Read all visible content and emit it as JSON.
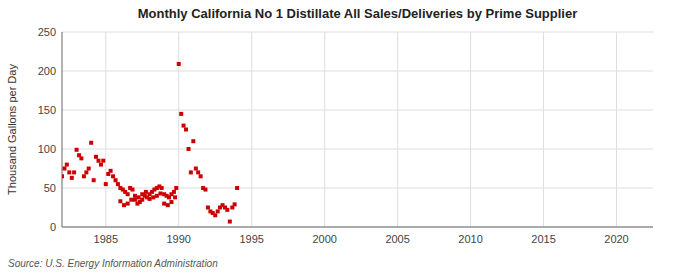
{
  "chart_data": {
    "type": "scatter",
    "title": "Monthly California No 1 Distillate All Sales/Deliveries by Prime Supplier",
    "y_label": "Thousand Gallons per Day",
    "source": "Source: U.S. Energy Information Administration",
    "color": "#cc0000",
    "marker": "square",
    "grid": true,
    "xlim": [
      1982.0,
      2022.5
    ],
    "ylim": [
      0,
      250
    ],
    "xticks": [
      1985,
      1990,
      1995,
      2000,
      2005,
      2010,
      2015,
      2020
    ],
    "yticks": [
      0,
      50,
      100,
      150,
      200,
      250
    ],
    "x": [
      1983.0,
      1983.17,
      1983.33,
      1983.5,
      1983.67,
      1983.83,
      1984.0,
      1984.17,
      1984.33,
      1984.5,
      1984.67,
      1984.83,
      1985.0,
      1985.17,
      1985.33,
      1985.5,
      1985.67,
      1985.83,
      1986.0,
      1986.17,
      1986.33,
      1986.5,
      1986.67,
      1986.83,
      1987.0,
      1987.17,
      1987.33,
      1987.5,
      1987.67,
      1987.83,
      1988.0,
      1988.17,
      1988.33,
      1988.5,
      1988.67,
      1988.83,
      1989.0,
      1989.17,
      1989.33,
      1989.5,
      1989.67,
      1989.83,
      1982.0,
      1982.17,
      1982.33,
      1982.5,
      1982.67,
      1982.83,
      1986.0,
      1986.25,
      1986.5,
      1986.75,
      1987.0,
      1987.25,
      1987.5,
      1987.75,
      1988.0,
      1988.25,
      1988.5,
      1988.75,
      1989.0,
      1989.25,
      1989.5,
      1989.75,
      1990.0,
      1990.17,
      1990.33,
      1990.5,
      1990.67,
      1990.83,
      1991.0,
      1991.17,
      1991.33,
      1991.5,
      1991.67,
      1991.83,
      1992.0,
      1992.17,
      1992.33,
      1992.5,
      1992.67,
      1992.83,
      1993.0,
      1993.17,
      1993.33,
      1993.5,
      1993.67,
      1993.83,
      1994.0
    ],
    "values": [
      99,
      92,
      88,
      65,
      70,
      75,
      108,
      60,
      90,
      85,
      80,
      85,
      55,
      68,
      72,
      65,
      60,
      55,
      50,
      48,
      45,
      42,
      50,
      48,
      35,
      30,
      32,
      35,
      40,
      38,
      42,
      45,
      48,
      50,
      52,
      50,
      42,
      40,
      38,
      42,
      45,
      50,
      65,
      75,
      80,
      70,
      63,
      70,
      33,
      28,
      30,
      35,
      40,
      38,
      42,
      45,
      36,
      38,
      40,
      43,
      30,
      28,
      32,
      38,
      209,
      145,
      130,
      125,
      100,
      70,
      110,
      75,
      70,
      65,
      50,
      48,
      25,
      20,
      18,
      15,
      20,
      25,
      28,
      25,
      22,
      7,
      25,
      29,
      50
    ]
  }
}
